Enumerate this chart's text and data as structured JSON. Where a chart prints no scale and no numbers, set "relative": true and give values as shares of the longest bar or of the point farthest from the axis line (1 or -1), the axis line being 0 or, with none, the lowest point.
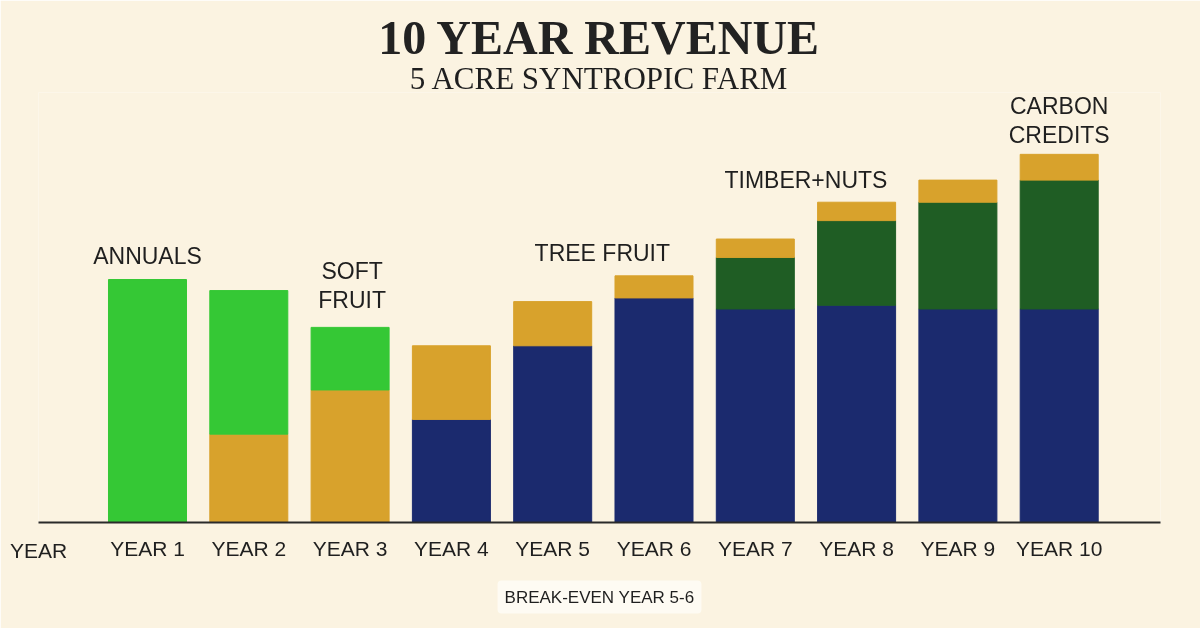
{
  "chart_data": {
    "type": "bar",
    "title": "10 YEAR REVENUE",
    "subtitle": "5 ACRE SYNTROPIC FARM",
    "xlabel": "YEAR",
    "categories": [
      "YEAR 1",
      "YEAR 2",
      "YEAR 3",
      "YEAR 4",
      "YEAR 5",
      "YEAR 6",
      "YEAR 7",
      "YEAR 8",
      "YEAR 9",
      "YEAR 10"
    ],
    "stacked": true,
    "relative": true,
    "series": [
      {
        "color": "#1b2a6e",
        "values": [
          null,
          null,
          null,
          0.28,
          0.48,
          0.61,
          0.58,
          0.59,
          0.58,
          0.58
        ]
      },
      {
        "color": "#d8a22c",
        "values": [
          null,
          0.24,
          0.36,
          0.2,
          0.12,
          0.06,
          null,
          null,
          null,
          null
        ]
      },
      {
        "color": "#35c835",
        "values": [
          0.66,
          0.39,
          0.17,
          null,
          null,
          null,
          null,
          null,
          null,
          null
        ]
      },
      {
        "color": "#1f5d24",
        "values": [
          null,
          null,
          null,
          null,
          null,
          null,
          0.14,
          0.23,
          0.29,
          0.35
        ]
      },
      {
        "color": "#d8a22c",
        "values": [
          null,
          null,
          null,
          null,
          null,
          null,
          0.05,
          0.05,
          0.06,
          0.07
        ]
      }
    ],
    "annotations": [
      "ANNUALS",
      "SOFT\nFRUIT",
      "TREE FRUIT",
      "TIMBER+NUTS",
      "CARBON\nCREDITS",
      "BREAK-EVEN YEAR 5-6"
    ]
  }
}
